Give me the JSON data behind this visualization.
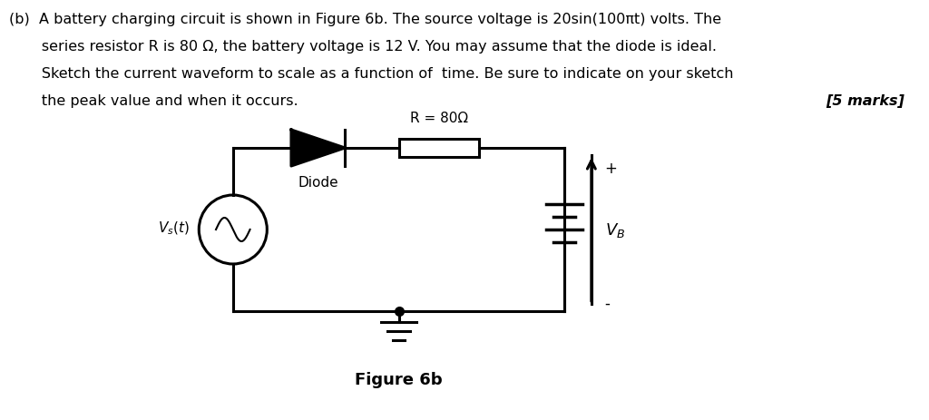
{
  "background_color": "#ffffff",
  "marks_text": "[5 marks]",
  "figure_label": "Figure 6b",
  "R_label": "R = 80Ω",
  "diode_label": "Diode",
  "vs_label": "V_s(t)",
  "vb_label": "V_B",
  "plus_label": "+",
  "minus_label": "-",
  "font_size_body": 11.5,
  "font_size_marks": 11.5,
  "font_size_figure": 13,
  "circuit_lw": 2.2,
  "para_lines": [
    "(b)  A battery charging circuit is shown in Figure 6b. The source voltage is 20sin(100πt) volts. The",
    "       series resistor R is 80 Ω, the battery voltage is 12 V. You may assume that the diode is ideal.",
    "       Sketch the current waveform to scale as a function of  time. Be sure to indicate on your sketch",
    "       the peak value and when it occurs."
  ]
}
